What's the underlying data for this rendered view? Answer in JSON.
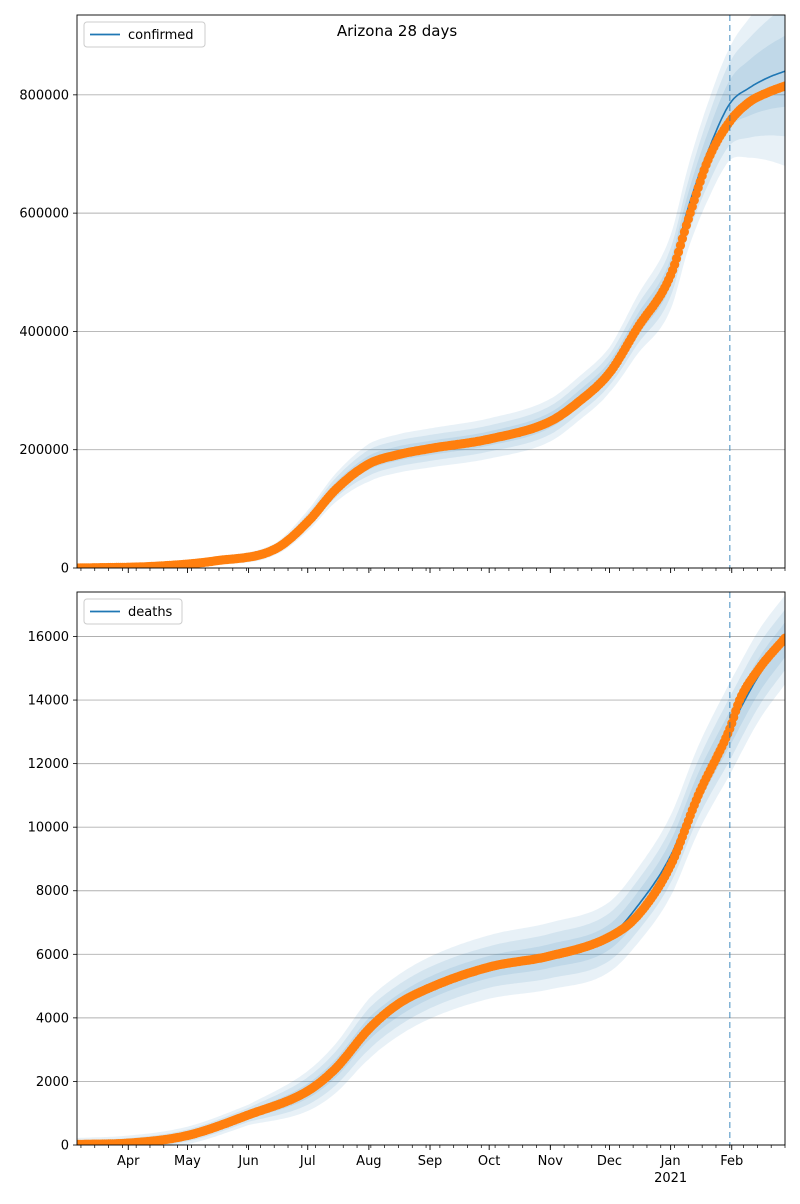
{
  "title": "Arizona 28 days",
  "colors": {
    "model": "#1f77b4",
    "observed": "#ff7f0e",
    "band": "#1f77b4",
    "grid": "#b0b0b0"
  },
  "chart_data": [
    {
      "type": "line",
      "panel": "top",
      "legend": [
        "confirmed"
      ],
      "legend_position": "top-left",
      "grid": "horizontal",
      "ylim": [
        0,
        935000
      ],
      "yticks": [
        0,
        200000,
        400000,
        600000,
        800000
      ],
      "ytick_labels": [
        "0",
        "200000",
        "400000",
        "600000",
        "800000"
      ],
      "forecast_start": "2021-01-31",
      "model_knots": [
        [
          "2020-03-06",
          0
        ],
        [
          "2020-04-15",
          3000
        ],
        [
          "2020-05-15",
          12000
        ],
        [
          "2020-06-15",
          33000
        ],
        [
          "2020-07-01",
          80000
        ],
        [
          "2020-07-15",
          135000
        ],
        [
          "2020-08-01",
          178000
        ],
        [
          "2020-08-15",
          193000
        ],
        [
          "2020-09-01",
          203000
        ],
        [
          "2020-10-01",
          219000
        ],
        [
          "2020-11-01",
          250000
        ],
        [
          "2020-11-15",
          285000
        ],
        [
          "2020-12-01",
          335000
        ],
        [
          "2020-12-15",
          410000
        ],
        [
          "2021-01-01",
          500000
        ],
        [
          "2021-01-10",
          610000
        ],
        [
          "2021-01-20",
          705000
        ],
        [
          "2021-01-31",
          785000
        ],
        [
          "2021-02-10",
          812000
        ],
        [
          "2021-02-20",
          830000
        ],
        [
          "2021-02-28",
          840000
        ]
      ],
      "observed_knots": [
        [
          "2020-03-06",
          0
        ],
        [
          "2020-04-15",
          3000
        ],
        [
          "2020-05-15",
          12000
        ],
        [
          "2020-06-15",
          33000
        ],
        [
          "2020-07-01",
          78000
        ],
        [
          "2020-07-15",
          132000
        ],
        [
          "2020-08-01",
          176000
        ],
        [
          "2020-08-15",
          191000
        ],
        [
          "2020-09-01",
          202000
        ],
        [
          "2020-10-01",
          218000
        ],
        [
          "2020-11-01",
          248000
        ],
        [
          "2020-11-15",
          280000
        ],
        [
          "2020-12-01",
          330000
        ],
        [
          "2020-12-15",
          405000
        ],
        [
          "2021-01-01",
          495000
        ],
        [
          "2021-01-10",
          590000
        ],
        [
          "2021-01-20",
          690000
        ],
        [
          "2021-01-31",
          755000
        ],
        [
          "2021-02-10",
          788000
        ],
        [
          "2021-02-20",
          805000
        ],
        [
          "2021-02-28",
          815000
        ]
      ],
      "band_halfwidths": [
        [
          "2020-03-06",
          [
            0,
            0,
            0
          ]
        ],
        [
          "2020-06-15",
          [
            4000,
            7000,
            10000
          ]
        ],
        [
          "2020-08-01",
          [
            12000,
            22000,
            32000
          ]
        ],
        [
          "2020-10-01",
          [
            12000,
            22000,
            34000
          ]
        ],
        [
          "2020-12-01",
          [
            14000,
            26000,
            38000
          ]
        ],
        [
          "2021-01-10",
          [
            25000,
            45000,
            70000
          ]
        ],
        [
          "2021-01-31",
          [
            40000,
            70000,
            95000
          ]
        ],
        [
          "2021-02-28",
          [
            60000,
            110000,
            160000
          ]
        ]
      ]
    },
    {
      "type": "line",
      "panel": "bottom",
      "legend": [
        "deaths"
      ],
      "legend_position": "top-left",
      "grid": "horizontal",
      "ylim": [
        0,
        17400
      ],
      "yticks": [
        0,
        2000,
        4000,
        6000,
        8000,
        10000,
        12000,
        14000,
        16000
      ],
      "ytick_labels": [
        "0",
        "2000",
        "4000",
        "6000",
        "8000",
        "10000",
        "12000",
        "14000",
        "16000"
      ],
      "xtick_labels": [
        "Apr",
        "May",
        "Jun",
        "Jul",
        "Aug",
        "Sep",
        "Oct",
        "Nov",
        "Dec",
        "Jan",
        "Feb"
      ],
      "xtick_dates": [
        "2020-04-01",
        "2020-05-01",
        "2020-06-01",
        "2020-07-01",
        "2020-08-01",
        "2020-09-01",
        "2020-10-01",
        "2020-11-01",
        "2020-12-01",
        "2021-01-01",
        "2021-02-01"
      ],
      "xtick_year": "2021",
      "xlim": [
        "2020-03-06",
        "2021-02-28"
      ],
      "forecast_start": "2021-01-31",
      "model_knots": [
        [
          "2020-03-06",
          20
        ],
        [
          "2020-04-01",
          60
        ],
        [
          "2020-05-01",
          300
        ],
        [
          "2020-06-01",
          950
        ],
        [
          "2020-07-01",
          1700
        ],
        [
          "2020-07-15",
          2400
        ],
        [
          "2020-08-01",
          3650
        ],
        [
          "2020-08-15",
          4350
        ],
        [
          "2020-09-01",
          4950
        ],
        [
          "2020-10-01",
          5600
        ],
        [
          "2020-11-01",
          5950
        ],
        [
          "2020-12-01",
          6550
        ],
        [
          "2020-12-15",
          7500
        ],
        [
          "2021-01-01",
          9100
        ],
        [
          "2021-01-15",
          11200
        ],
        [
          "2021-01-31",
          13100
        ],
        [
          "2021-02-15",
          14800
        ],
        [
          "2021-02-28",
          15900
        ]
      ],
      "observed_knots": [
        [
          "2020-03-06",
          20
        ],
        [
          "2020-04-01",
          60
        ],
        [
          "2020-05-01",
          300
        ],
        [
          "2020-06-01",
          950
        ],
        [
          "2020-07-01",
          1700
        ],
        [
          "2020-07-15",
          2400
        ],
        [
          "2020-08-01",
          3650
        ],
        [
          "2020-08-15",
          4400
        ],
        [
          "2020-09-01",
          4950
        ],
        [
          "2020-10-01",
          5600
        ],
        [
          "2020-11-01",
          5950
        ],
        [
          "2020-12-01",
          6550
        ],
        [
          "2020-12-15",
          7200
        ],
        [
          "2021-01-01",
          8800
        ],
        [
          "2021-01-15",
          11000
        ],
        [
          "2021-01-31",
          13100
        ],
        [
          "2021-02-05",
          14000
        ],
        [
          "2021-02-15",
          15000
        ],
        [
          "2021-02-28",
          15950
        ]
      ],
      "band_halfwidths": [
        [
          "2020-03-06",
          [
            60,
            130,
            200
          ]
        ],
        [
          "2020-06-01",
          [
            120,
            220,
            320
          ]
        ],
        [
          "2020-08-01",
          [
            350,
            650,
            950
          ]
        ],
        [
          "2020-10-01",
          [
            350,
            650,
            1000
          ]
        ],
        [
          "2020-12-01",
          [
            400,
            750,
            1100
          ]
        ],
        [
          "2021-01-15",
          [
            500,
            900,
            1350
          ]
        ],
        [
          "2021-01-31",
          [
            550,
            1000,
            1450
          ]
        ],
        [
          "2021-02-28",
          [
            550,
            950,
            1400
          ]
        ]
      ]
    }
  ]
}
